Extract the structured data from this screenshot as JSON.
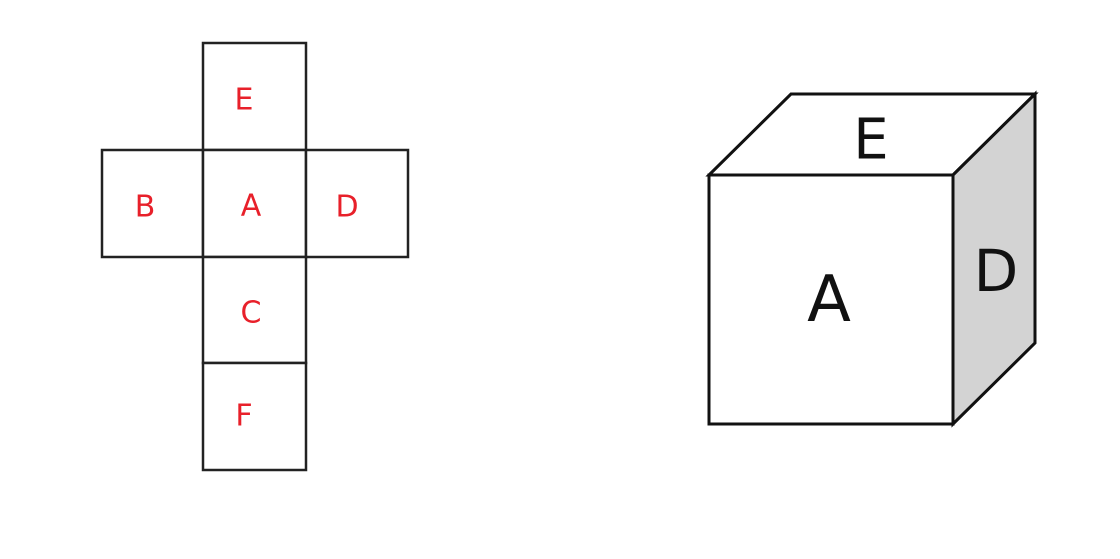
{
  "net": {
    "faces": {
      "top": "E",
      "left": "B",
      "center": "A",
      "right": "D",
      "below": "C",
      "bottom": "F"
    },
    "label_color": "#e8202a"
  },
  "cube": {
    "top_label": "E",
    "front_label": "A",
    "side_label": "D",
    "side_fill": "#d3d3d3"
  }
}
